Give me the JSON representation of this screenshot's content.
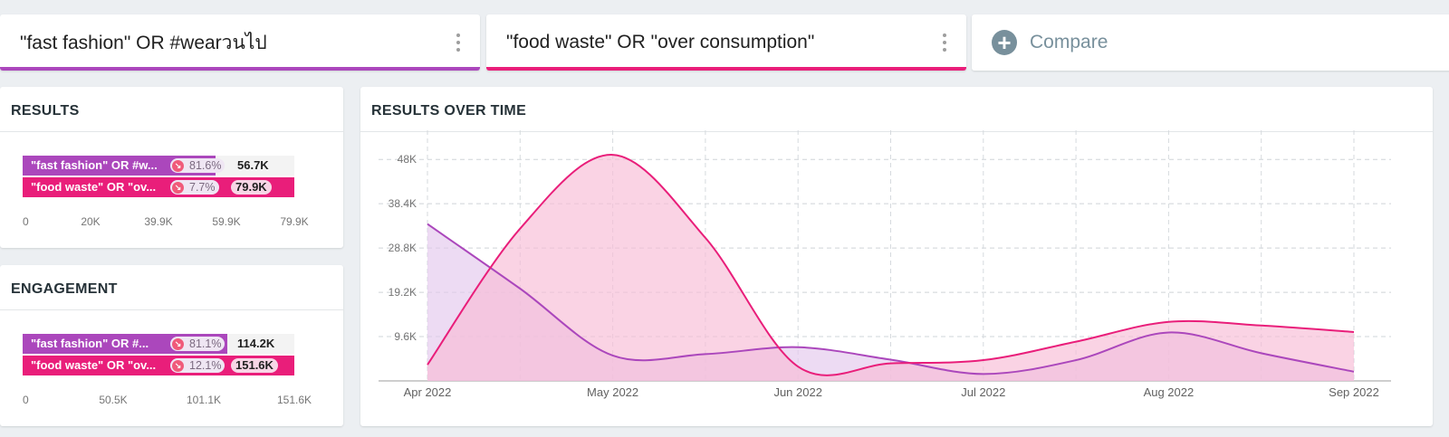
{
  "queries": [
    {
      "text": "\"fast fashion\" OR #wearวนไป",
      "color": "#ab47bc"
    },
    {
      "text": "\"food waste\" OR \"over consumption\"",
      "color": "#e91e7a"
    }
  ],
  "compare": {
    "label": "Compare",
    "icon": "plus-icon"
  },
  "results_panel": {
    "title": "RESULTS",
    "rows": [
      {
        "label": "\"fast fashion\" OR #w...",
        "pct": "81.6%",
        "value": "56.7K",
        "raw": 56.7,
        "color": "#ab47bc",
        "trend_icon": "trend-down-icon"
      },
      {
        "label": "\"food waste\" OR \"ov...",
        "pct": "7.7%",
        "value": "79.9K",
        "raw": 79.9,
        "color": "#e91e7a",
        "trend_icon": "trend-down-icon"
      }
    ],
    "axis": [
      "0",
      "20K",
      "39.9K",
      "59.9K",
      "79.9K"
    ],
    "max": 79.9
  },
  "engagement_panel": {
    "title": "ENGAGEMENT",
    "rows": [
      {
        "label": "\"fast fashion\" OR #...",
        "pct": "81.1%",
        "value": "114.2K",
        "raw": 114.2,
        "color": "#ab47bc",
        "trend_icon": "trend-down-icon"
      },
      {
        "label": "\"food waste\" OR \"ov...",
        "pct": "12.1%",
        "value": "151.6K",
        "raw": 151.6,
        "color": "#e91e7a",
        "trend_icon": "trend-down-icon"
      }
    ],
    "axis": [
      "0",
      "50.5K",
      "101.1K",
      "151.6K"
    ],
    "max": 151.6
  },
  "chart_data": {
    "type": "area",
    "title": "RESULTS OVER TIME",
    "categories": [
      "Apr 2022",
      "May 2022",
      "Jun 2022",
      "Jul 2022",
      "Aug 2022",
      "Sep 2022"
    ],
    "y_ticks": [
      "9.6K",
      "19.2K",
      "28.8K",
      "38.4K",
      "48K"
    ],
    "ylim": [
      0,
      50000
    ],
    "grid": true,
    "series": [
      {
        "color": "#ab47bc",
        "fill": "#e3c8ec",
        "points": [
          [
            0,
            34000
          ],
          [
            0.5,
            20000
          ],
          [
            1,
            5500
          ],
          [
            1.5,
            5800
          ],
          [
            2,
            7300
          ],
          [
            2.5,
            4600
          ],
          [
            3,
            1500
          ],
          [
            3.5,
            4500
          ],
          [
            4,
            10500
          ],
          [
            4.5,
            6000
          ],
          [
            5,
            2000
          ]
        ]
      },
      {
        "color": "#e91e7a",
        "fill": "#f8bcd6",
        "points": [
          [
            0,
            3500
          ],
          [
            0.5,
            33000
          ],
          [
            1,
            49000
          ],
          [
            1.5,
            31000
          ],
          [
            2,
            3100
          ],
          [
            2.5,
            3800
          ],
          [
            3,
            4500
          ],
          [
            3.5,
            8500
          ],
          [
            4,
            12800
          ],
          [
            4.5,
            12000
          ],
          [
            5,
            10600
          ]
        ]
      }
    ]
  }
}
